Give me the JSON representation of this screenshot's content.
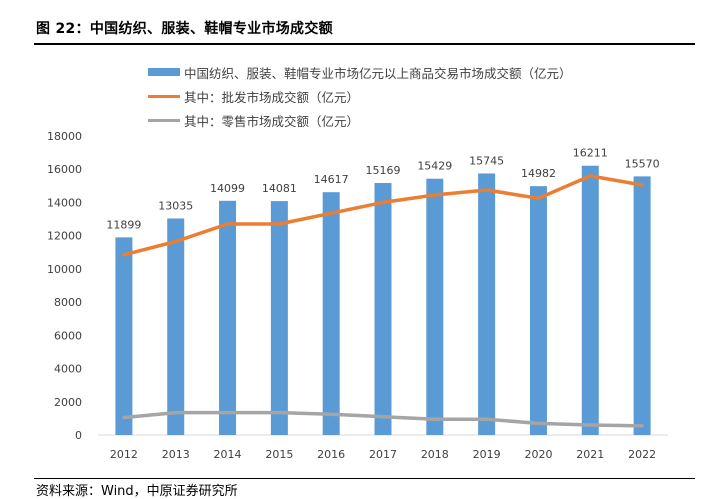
{
  "figure": {
    "title": "图 22：中国纺织、服装、鞋帽专业市场成交额",
    "source": "资料来源：Wind，中原证券研究所"
  },
  "colors": {
    "bar": "#5b9bd5",
    "wholesale": "#ed7d31",
    "retail": "#a5a5a5"
  },
  "chart_data": {
    "type": "bar",
    "categories": [
      "2012",
      "2013",
      "2014",
      "2015",
      "2016",
      "2017",
      "2018",
      "2019",
      "2020",
      "2021",
      "2022"
    ],
    "ylim": [
      0,
      18000
    ],
    "yticks": [
      "0",
      "2000",
      "4000",
      "6000",
      "8000",
      "10000",
      "12000",
      "14000",
      "16000",
      "18000"
    ],
    "grid": false,
    "legend_position": "top",
    "series": [
      {
        "name": "中国纺织、服装、鞋帽专业市场亿元以上商品交易市场成交额（亿元）",
        "type": "bar",
        "values": [
          11899,
          13035,
          14099,
          14081,
          14617,
          15169,
          15429,
          15745,
          14982,
          16211,
          15570
        ],
        "labels": [
          "11899",
          "13035",
          "14099",
          "14081",
          "14617",
          "15169",
          "15429",
          "15745",
          "14982",
          "16211",
          "15570"
        ]
      },
      {
        "name": "其中：批发市场成交额（亿元）",
        "type": "line",
        "values": [
          10850,
          11650,
          12700,
          12700,
          13350,
          14000,
          14450,
          14750,
          14250,
          15600,
          15050
        ]
      },
      {
        "name": "其中：零售市场成交额（亿元）",
        "type": "line",
        "values": [
          1050,
          1350,
          1350,
          1350,
          1250,
          1100,
          950,
          950,
          700,
          600,
          550
        ]
      }
    ]
  }
}
